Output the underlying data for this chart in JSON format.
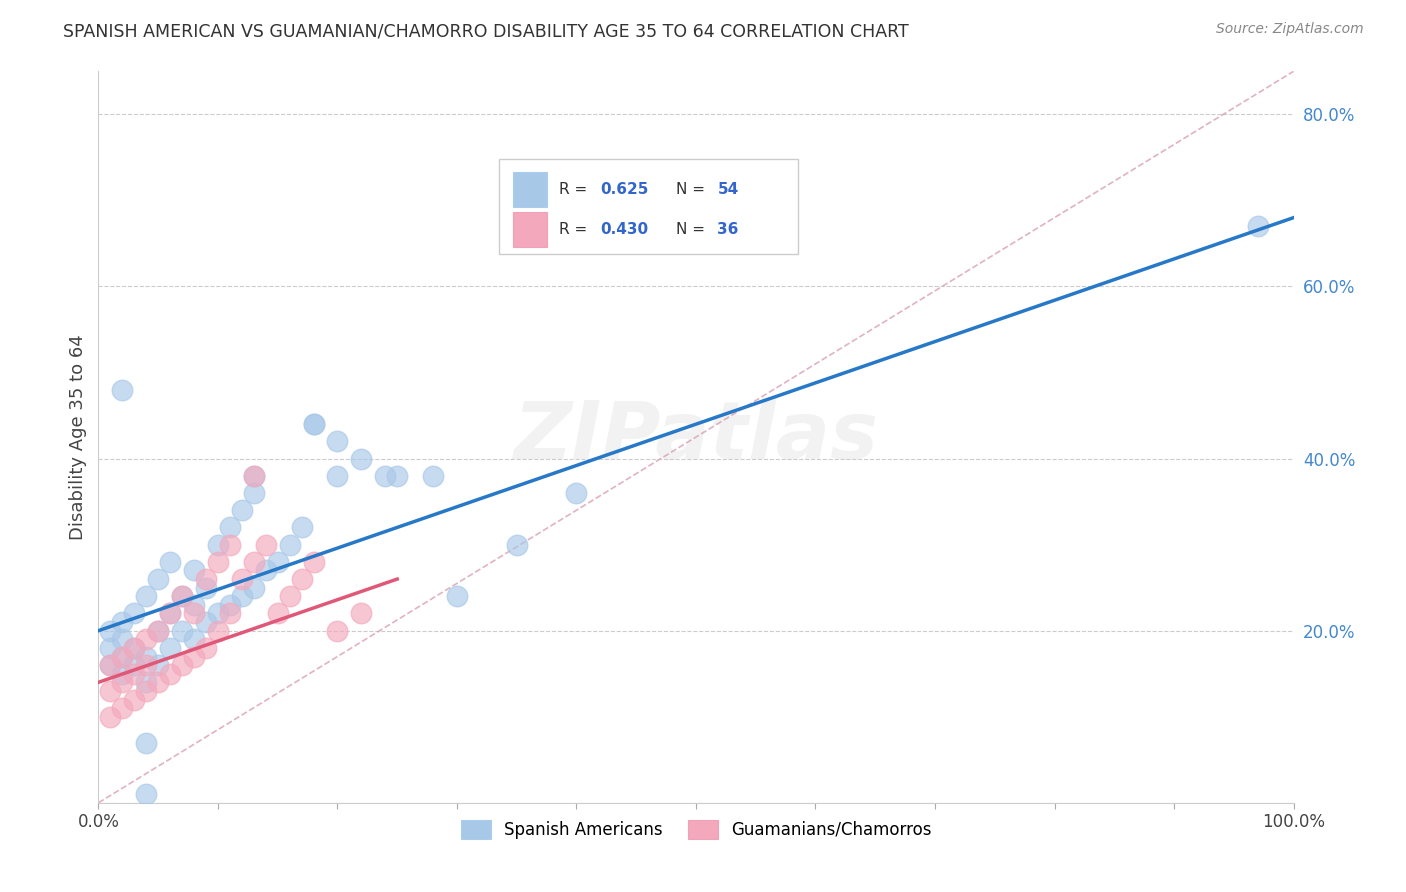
{
  "title": "SPANISH AMERICAN VS GUAMANIAN/CHAMORRO DISABILITY AGE 35 TO 64 CORRELATION CHART",
  "source": "Source: ZipAtlas.com",
  "ylabel": "Disability Age 35 to 64",
  "xmin": 0.0,
  "xmax": 1.0,
  "ymin": 0.0,
  "ymax": 0.85,
  "color_blue": "#a8c8e8",
  "color_pink": "#f4a8bc",
  "color_blue_line": "#2878c8",
  "color_pink_line": "#e05878",
  "color_dash": "#d8a0b0",
  "watermark_text": "ZIPatlas",
  "legend_r1": "0.625",
  "legend_n1": "54",
  "legend_r2": "0.430",
  "legend_n2": "36",
  "blue_line_x0": 0.0,
  "blue_line_y0": 0.2,
  "blue_line_x1": 1.0,
  "blue_line_y1": 0.68,
  "pink_line_x0": 0.0,
  "pink_line_y0": 0.14,
  "pink_line_x1": 0.25,
  "pink_line_y1": 0.26,
  "blue_scatter_x": [
    0.01,
    0.01,
    0.01,
    0.02,
    0.02,
    0.02,
    0.02,
    0.03,
    0.03,
    0.03,
    0.04,
    0.04,
    0.04,
    0.05,
    0.05,
    0.05,
    0.06,
    0.06,
    0.06,
    0.07,
    0.07,
    0.08,
    0.08,
    0.08,
    0.09,
    0.09,
    0.1,
    0.1,
    0.11,
    0.11,
    0.12,
    0.12,
    0.13,
    0.13,
    0.14,
    0.15,
    0.16,
    0.17,
    0.18,
    0.2,
    0.22,
    0.24,
    0.28,
    0.3,
    0.35,
    0.4,
    0.04,
    0.04,
    0.13,
    0.18,
    0.02,
    0.97,
    0.2,
    0.25
  ],
  "blue_scatter_y": [
    0.16,
    0.18,
    0.2,
    0.15,
    0.17,
    0.19,
    0.21,
    0.16,
    0.18,
    0.22,
    0.14,
    0.17,
    0.24,
    0.16,
    0.2,
    0.26,
    0.18,
    0.22,
    0.28,
    0.2,
    0.24,
    0.19,
    0.23,
    0.27,
    0.21,
    0.25,
    0.22,
    0.3,
    0.23,
    0.32,
    0.24,
    0.34,
    0.25,
    0.36,
    0.27,
    0.28,
    0.3,
    0.32,
    0.44,
    0.38,
    0.4,
    0.38,
    0.38,
    0.24,
    0.3,
    0.36,
    0.07,
    0.01,
    0.38,
    0.44,
    0.48,
    0.67,
    0.42,
    0.38
  ],
  "pink_scatter_x": [
    0.01,
    0.01,
    0.01,
    0.02,
    0.02,
    0.02,
    0.03,
    0.03,
    0.03,
    0.04,
    0.04,
    0.04,
    0.05,
    0.05,
    0.06,
    0.06,
    0.07,
    0.07,
    0.08,
    0.08,
    0.09,
    0.09,
    0.1,
    0.1,
    0.11,
    0.11,
    0.12,
    0.13,
    0.14,
    0.15,
    0.16,
    0.17,
    0.18,
    0.2,
    0.22,
    0.13
  ],
  "pink_scatter_y": [
    0.1,
    0.13,
    0.16,
    0.11,
    0.14,
    0.17,
    0.12,
    0.15,
    0.18,
    0.13,
    0.16,
    0.19,
    0.14,
    0.2,
    0.15,
    0.22,
    0.16,
    0.24,
    0.17,
    0.22,
    0.18,
    0.26,
    0.2,
    0.28,
    0.22,
    0.3,
    0.26,
    0.28,
    0.3,
    0.22,
    0.24,
    0.26,
    0.28,
    0.2,
    0.22,
    0.38
  ]
}
